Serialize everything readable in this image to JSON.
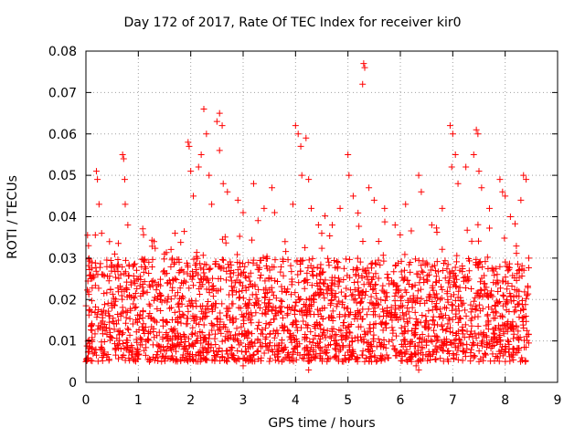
{
  "chart_data": {
    "type": "scatter",
    "title": "Day 172 of 2017, Rate Of TEC Index for receiver kir0",
    "xlabel": "GPS time / hours",
    "ylabel": "ROTI / TECUs",
    "xlim": [
      0,
      9
    ],
    "ylim": [
      0,
      0.08
    ],
    "xticks": [
      "0",
      "1",
      "2",
      "3",
      "4",
      "5",
      "6",
      "7",
      "8",
      "9"
    ],
    "yticks": [
      "0",
      "0.01",
      "0.02",
      "0.03",
      "0.04",
      "0.05",
      "0.06",
      "0.07",
      "0.08"
    ],
    "grid": true,
    "marker": "+",
    "color": "#ff0000",
    "series": [
      {
        "name": "ROTI",
        "x_range": [
          0,
          8.45
        ],
        "dense_band": [
          0.005,
          0.03
        ],
        "points": [
          [
            0.05,
            0.033
          ],
          [
            0.1,
            0.025
          ],
          [
            0.2,
            0.051
          ],
          [
            0.22,
            0.049
          ],
          [
            0.25,
            0.043
          ],
          [
            0.3,
            0.036
          ],
          [
            0.45,
            0.034
          ],
          [
            0.55,
            0.031
          ],
          [
            0.7,
            0.055
          ],
          [
            0.72,
            0.054
          ],
          [
            0.74,
            0.049
          ],
          [
            0.75,
            0.043
          ],
          [
            0.8,
            0.038
          ],
          [
            0.9,
            0.028
          ],
          [
            1.0,
            0.025
          ],
          [
            1.1,
            0.022
          ],
          [
            1.2,
            0.029
          ],
          [
            1.3,
            0.034
          ],
          [
            1.5,
            0.031
          ],
          [
            1.7,
            0.036
          ],
          [
            1.95,
            0.058
          ],
          [
            1.97,
            0.057
          ],
          [
            2.0,
            0.051
          ],
          [
            2.05,
            0.045
          ],
          [
            2.15,
            0.052
          ],
          [
            2.2,
            0.055
          ],
          [
            2.25,
            0.066
          ],
          [
            2.3,
            0.06
          ],
          [
            2.35,
            0.05
          ],
          [
            2.4,
            0.043
          ],
          [
            2.5,
            0.063
          ],
          [
            2.55,
            0.065
          ],
          [
            2.6,
            0.062
          ],
          [
            2.55,
            0.056
          ],
          [
            2.62,
            0.048
          ],
          [
            2.7,
            0.046
          ],
          [
            2.9,
            0.044
          ],
          [
            3.0,
            0.041
          ],
          [
            3.2,
            0.048
          ],
          [
            3.4,
            0.042
          ],
          [
            3.55,
            0.047
          ],
          [
            3.6,
            0.041
          ],
          [
            3.8,
            0.034
          ],
          [
            3.95,
            0.043
          ],
          [
            4.0,
            0.062
          ],
          [
            4.05,
            0.06
          ],
          [
            4.1,
            0.057
          ],
          [
            4.12,
            0.05
          ],
          [
            4.2,
            0.059
          ],
          [
            4.25,
            0.049
          ],
          [
            4.3,
            0.042
          ],
          [
            4.5,
            0.036
          ],
          [
            4.7,
            0.038
          ],
          [
            4.85,
            0.042
          ],
          [
            5.0,
            0.055
          ],
          [
            5.02,
            0.05
          ],
          [
            5.1,
            0.045
          ],
          [
            5.3,
            0.077
          ],
          [
            5.32,
            0.076
          ],
          [
            5.28,
            0.072
          ],
          [
            5.4,
            0.047
          ],
          [
            5.5,
            0.044
          ],
          [
            5.7,
            0.042
          ],
          [
            5.9,
            0.038
          ],
          [
            6.1,
            0.043
          ],
          [
            6.35,
            0.05
          ],
          [
            6.4,
            0.046
          ],
          [
            6.6,
            0.038
          ],
          [
            6.8,
            0.042
          ],
          [
            6.95,
            0.062
          ],
          [
            7.0,
            0.06
          ],
          [
            7.05,
            0.055
          ],
          [
            6.98,
            0.052
          ],
          [
            7.1,
            0.048
          ],
          [
            7.25,
            0.052
          ],
          [
            7.4,
            0.055
          ],
          [
            7.45,
            0.061
          ],
          [
            7.48,
            0.06
          ],
          [
            7.5,
            0.051
          ],
          [
            7.55,
            0.047
          ],
          [
            7.7,
            0.042
          ],
          [
            7.9,
            0.049
          ],
          [
            7.95,
            0.046
          ],
          [
            8.0,
            0.045
          ],
          [
            8.1,
            0.04
          ],
          [
            8.3,
            0.044
          ],
          [
            8.35,
            0.05
          ],
          [
            8.4,
            0.049
          ],
          [
            8.45,
            0.03
          ],
          [
            6.3,
            0.004
          ],
          [
            6.35,
            0.003
          ],
          [
            4.25,
            0.003
          ],
          [
            3.0,
            0.004
          ],
          [
            0.0,
            0.005
          ]
        ]
      }
    ]
  }
}
